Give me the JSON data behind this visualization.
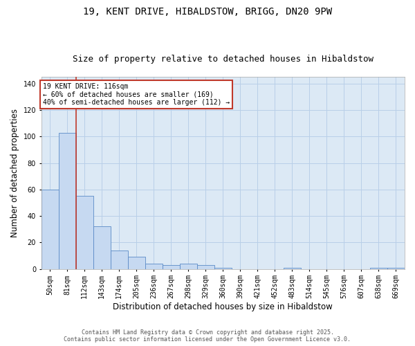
{
  "title1": "19, KENT DRIVE, HIBALDSTOW, BRIGG, DN20 9PW",
  "title2": "Size of property relative to detached houses in Hibaldstow",
  "xlabel": "Distribution of detached houses by size in Hibaldstow",
  "ylabel": "Number of detached properties",
  "categories": [
    "50sqm",
    "81sqm",
    "112sqm",
    "143sqm",
    "174sqm",
    "205sqm",
    "236sqm",
    "267sqm",
    "298sqm",
    "329sqm",
    "360sqm",
    "390sqm",
    "421sqm",
    "452sqm",
    "483sqm",
    "514sqm",
    "545sqm",
    "576sqm",
    "607sqm",
    "638sqm",
    "669sqm"
  ],
  "values": [
    60,
    103,
    55,
    32,
    14,
    9,
    4,
    3,
    4,
    3,
    1,
    0,
    0,
    0,
    1,
    0,
    0,
    0,
    0,
    1,
    1
  ],
  "bar_color": "#c6d9f1",
  "bar_edge_color": "#5a8ac6",
  "vline_color": "#c0392b",
  "annotation_title": "19 KENT DRIVE: 116sqm",
  "annotation_line1": "← 60% of detached houses are smaller (169)",
  "annotation_line2": "40% of semi-detached houses are larger (112) →",
  "annotation_box_color": "#c0392b",
  "ylim": [
    0,
    145
  ],
  "yticks": [
    0,
    20,
    40,
    60,
    80,
    100,
    120,
    140
  ],
  "footer1": "Contains HM Land Registry data © Crown copyright and database right 2025.",
  "footer2": "Contains public sector information licensed under the Open Government Licence v3.0.",
  "background_color": "#ffffff",
  "plot_bg_color": "#dce9f5",
  "grid_color": "#b8cfe8",
  "title_fontsize": 10,
  "subtitle_fontsize": 9,
  "axis_label_fontsize": 8.5,
  "tick_fontsize": 7,
  "annotation_fontsize": 7,
  "footer_fontsize": 6
}
